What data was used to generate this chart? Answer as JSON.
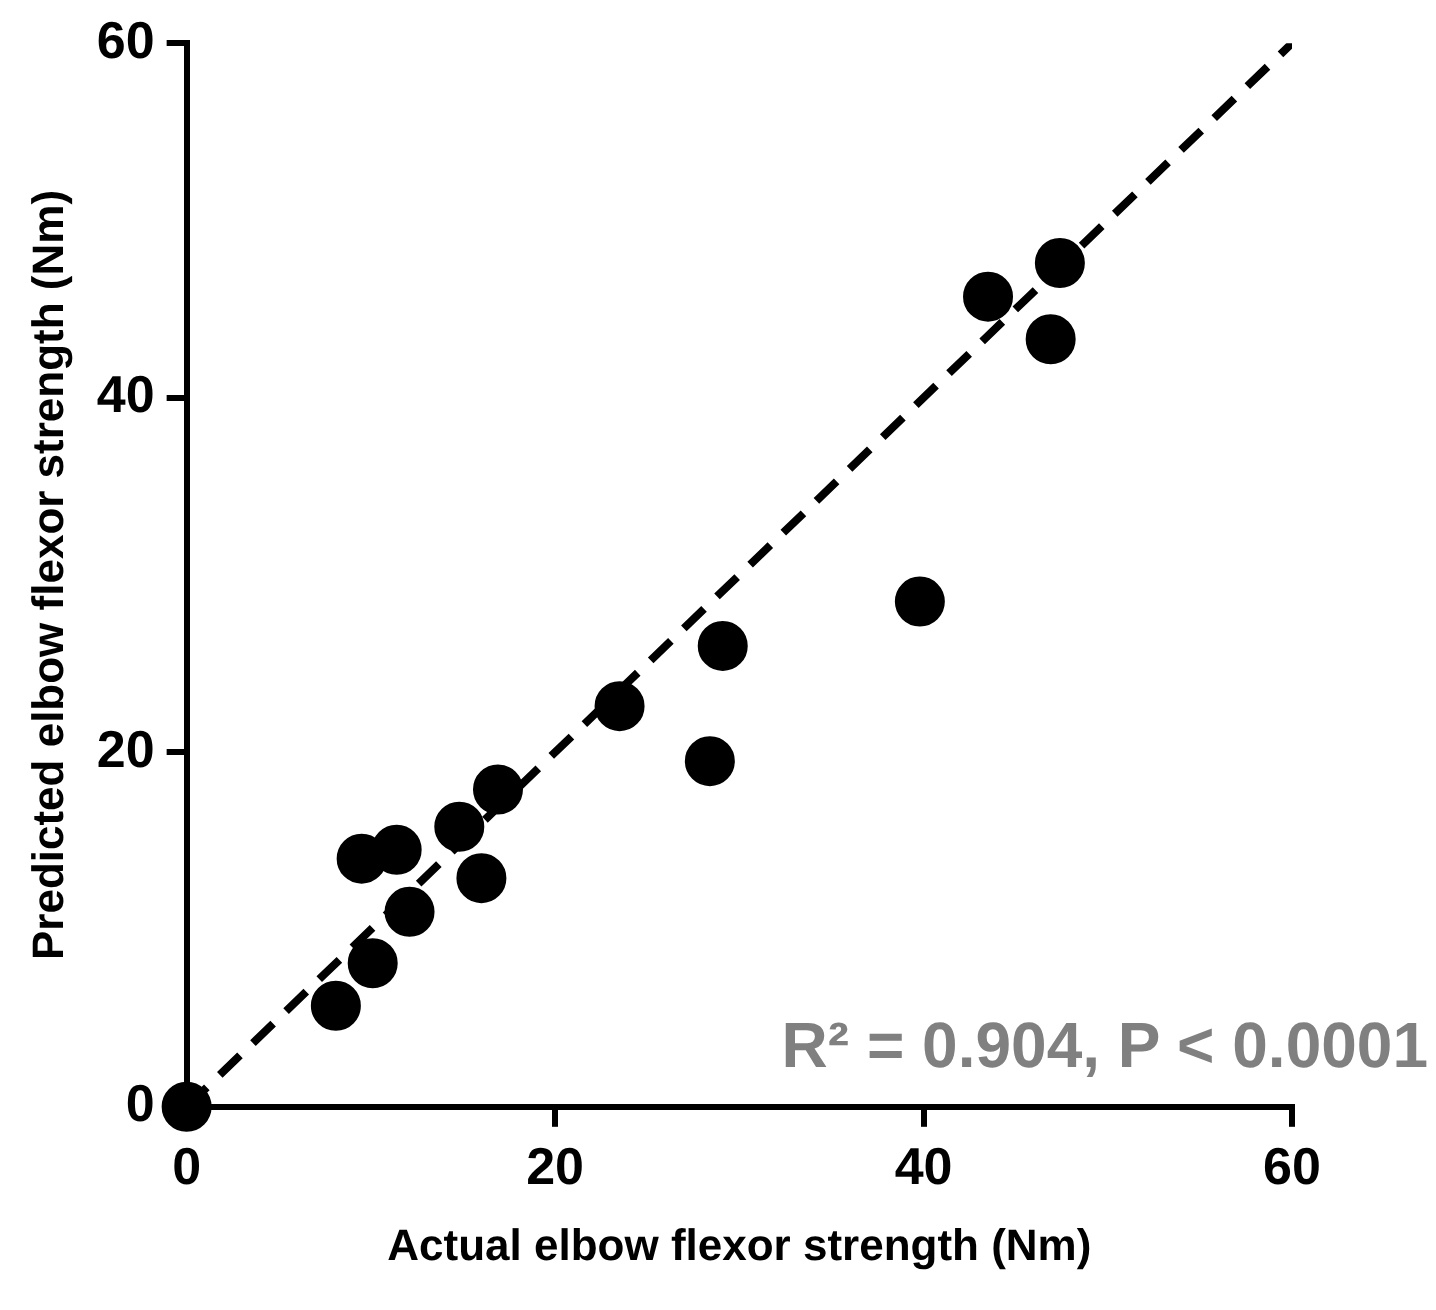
{
  "chart_data": {
    "type": "scatter",
    "xlabel": "Actual elbow flexor strength (Nm)",
    "ylabel": "Predicted elbow flexor strength (Nm)",
    "xlim": [
      0,
      60
    ],
    "xticks": [
      0,
      20,
      40,
      60
    ],
    "ylim": [
      0,
      60
    ],
    "yticks": [
      0,
      20,
      40,
      60
    ],
    "grid": false,
    "legend": false,
    "marker": "circle",
    "series": [
      {
        "color": "#000000",
        "x": [
          0,
          8.1,
          10.1,
          12.1,
          9.5,
          11.4,
          14.8,
          16.9,
          16.0,
          23.5,
          29.1,
          28.4,
          39.8,
          43.5,
          47.4,
          46.9
        ],
        "values": [
          0,
          5.7,
          8.1,
          11.0,
          14.0,
          14.5,
          15.8,
          17.9,
          12.9,
          22.6,
          26.0,
          19.5,
          28.5,
          45.7,
          47.6,
          43.3
        ]
      },
      {
        "type": "line",
        "color": "#000000",
        "line_style": "dashed",
        "marker": "none",
        "x": [
          0,
          60
        ],
        "values": [
          0,
          60
        ]
      }
    ],
    "annotations": [
      "R² = 0.904, P < 0.0001"
    ]
  }
}
